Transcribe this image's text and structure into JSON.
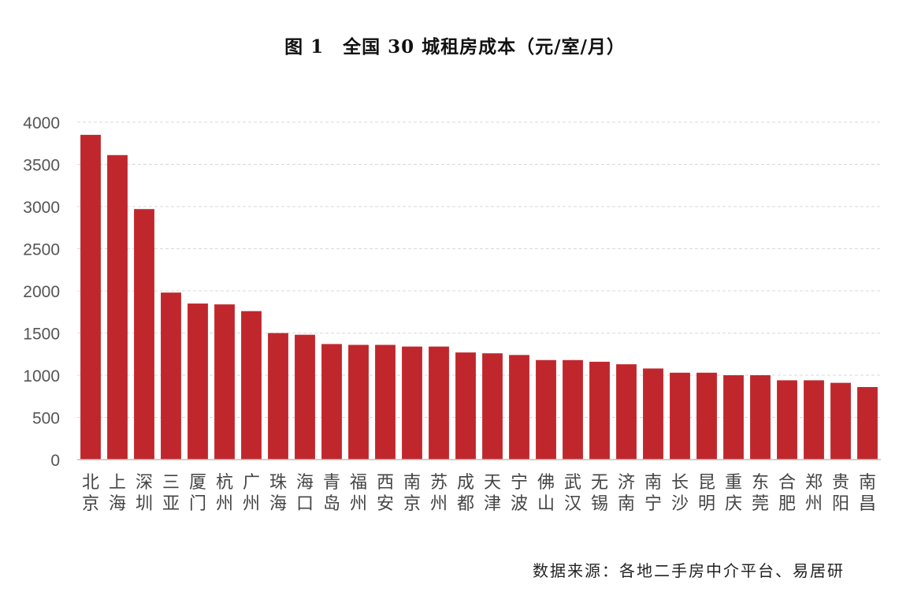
{
  "title": "图 1　全国 30 城租房成本（元/室/月）",
  "source": "数据来源：各地二手房中介平台、易居研",
  "colors": {
    "bar": "#c0272d",
    "grid": "#d9d9d9",
    "axis": "#bfbfbf"
  },
  "chart_data": {
    "type": "bar",
    "title": "图 1　全国 30 城租房成本（元/室/月）",
    "xlabel": "",
    "ylabel": "",
    "ylim": [
      0,
      4000
    ],
    "yticks": [
      0,
      500,
      1000,
      1500,
      2000,
      2500,
      3000,
      3500,
      4000
    ],
    "grid": true,
    "categories": [
      "北京",
      "上海",
      "深圳",
      "三亚",
      "厦门",
      "杭州",
      "广州",
      "珠海",
      "海口",
      "青岛",
      "福州",
      "西安",
      "南京",
      "苏州",
      "成都",
      "天津",
      "宁波",
      "佛山",
      "武汉",
      "无锡",
      "济南",
      "南宁",
      "长沙",
      "昆明",
      "重庆",
      "东莞",
      "合肥",
      "郑州",
      "贵阳",
      "南昌"
    ],
    "values": [
      3850,
      3610,
      2970,
      1980,
      1850,
      1840,
      1760,
      1500,
      1480,
      1370,
      1360,
      1360,
      1340,
      1340,
      1270,
      1260,
      1240,
      1180,
      1180,
      1160,
      1130,
      1080,
      1030,
      1030,
      1000,
      1000,
      940,
      940,
      910,
      860
    ]
  }
}
